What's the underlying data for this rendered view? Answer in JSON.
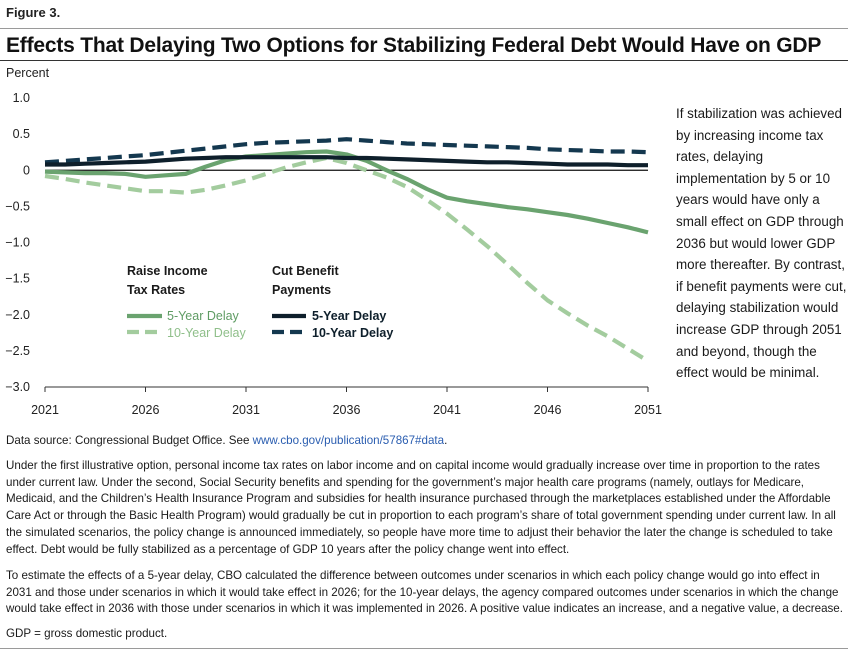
{
  "figure_label": "Figure 3.",
  "title": "Effects That Delaying Two Options for Stabilizing Federal Debt Would Have on GDP",
  "side_note": "If stabilization was achieved by increasing income tax rates, delaying implementation by 5 or 10 years would have only a small effect on GDP through 2036 but would lower GDP more thereafter. By contrast, if benefit payments were cut, delaying stabilization would increase GDP through 2051 and beyond, though the effect would be minimal.",
  "notes": {
    "source_prefix": "Data source: Congressional Budget Office. See ",
    "source_link": "www.cbo.gov/publication/57867#data",
    "source_suffix": ".",
    "paragraph1": "Under the first illustrative option, personal income tax rates on labor income and on capital income would gradually increase over time in proportion to the rates under current law. Under the second, Social Security benefits and spending for the government’s major health care programs (namely, outlays for Medicare, Medicaid, and the Children’s Health Insurance Program and subsidies for health insurance purchased through the marketplaces established under the Affordable Care Act or through the Basic Health Program) would gradually be cut in proportion to each program’s share of total government spending under current law. In all the simulated scenarios, the policy change is announced immediately, so people have more time to adjust their behavior the later the change is scheduled to take effect. Debt would be fully stabilized as a percentage of GDP 10 years after the policy change went into effect.",
    "paragraph2": "To estimate the effects of a 5-year delay, CBO calculated the difference between outcomes under scenarios in which each policy change would go into effect in 2031 and those under scenarios in which it would take effect in 2026; for the 10-year delays, the agency compared outcomes under scenarios in which the change would take effect in 2036 with those under scenarios in which it was implemented in 2026. A positive value indicates an increase, and a negative value, a decrease.",
    "abbreviation": "GDP = gross domestic product."
  },
  "chart_data": {
    "type": "line",
    "ylabel": "Percent",
    "xlabel": "",
    "xlim": [
      2021,
      2051
    ],
    "ylim": [
      -3.0,
      1.0
    ],
    "x_ticks": [
      "2021",
      "2026",
      "2031",
      "2036",
      "2041",
      "2046",
      "2051"
    ],
    "x_tick_values": [
      2021,
      2026,
      2031,
      2036,
      2041,
      2046,
      2051
    ],
    "y_ticks": [
      "1.0",
      "0.5",
      "0",
      "-0.5",
      "-1.0",
      "-1.5",
      "-2.0",
      "-2.5",
      "-3.0"
    ],
    "y_tick_values": [
      1.0,
      0.5,
      0,
      -0.5,
      -1.0,
      -1.5,
      -2.0,
      -2.5,
      -3.0
    ],
    "zero_line": true,
    "grid": false,
    "legend_groups": [
      {
        "title_line1": "Raise Income",
        "title_line2": "Tax Rates"
      },
      {
        "title_line1": "Cut Benefit",
        "title_line2": "Payments"
      }
    ],
    "x": [
      2021,
      2022,
      2023,
      2024,
      2025,
      2026,
      2027,
      2028,
      2029,
      2030,
      2031,
      2032,
      2033,
      2034,
      2035,
      2036,
      2037,
      2038,
      2039,
      2040,
      2041,
      2042,
      2043,
      2044,
      2045,
      2046,
      2047,
      2048,
      2049,
      2050,
      2051
    ],
    "series": [
      {
        "name": "5-Year Delay",
        "group": 0,
        "color": "#6aa36f",
        "dash": "solid",
        "values": [
          -0.02,
          -0.03,
          -0.04,
          -0.04,
          -0.05,
          -0.09,
          -0.07,
          -0.05,
          0.05,
          0.14,
          0.19,
          0.21,
          0.23,
          0.25,
          0.26,
          0.22,
          0.13,
          0.0,
          -0.12,
          -0.26,
          -0.38,
          -0.43,
          -0.47,
          -0.51,
          -0.54,
          -0.58,
          -0.62,
          -0.67,
          -0.73,
          -0.79,
          -0.86
        ]
      },
      {
        "name": "10-Year Delay",
        "group": 0,
        "color": "#a3cc9e",
        "dash": "dashed",
        "values": [
          -0.08,
          -0.12,
          -0.17,
          -0.21,
          -0.25,
          -0.29,
          -0.29,
          -0.31,
          -0.27,
          -0.21,
          -0.14,
          -0.05,
          0.04,
          0.11,
          0.17,
          0.1,
          0.0,
          -0.1,
          -0.23,
          -0.41,
          -0.6,
          -0.82,
          -1.05,
          -1.3,
          -1.56,
          -1.8,
          -1.98,
          -2.15,
          -2.3,
          -2.47,
          -2.64
        ]
      },
      {
        "name": "5-Year Delay",
        "group": 1,
        "color": "#0e1f2b",
        "dash": "solid",
        "values": [
          0.08,
          0.08,
          0.09,
          0.1,
          0.11,
          0.12,
          0.14,
          0.16,
          0.17,
          0.18,
          0.18,
          0.18,
          0.18,
          0.18,
          0.18,
          0.17,
          0.17,
          0.16,
          0.15,
          0.14,
          0.13,
          0.12,
          0.11,
          0.11,
          0.1,
          0.09,
          0.08,
          0.08,
          0.08,
          0.07,
          0.07
        ]
      },
      {
        "name": "10-Year Delay",
        "group": 1,
        "color": "#14384f",
        "dash": "dashed",
        "values": [
          0.11,
          0.13,
          0.15,
          0.17,
          0.19,
          0.21,
          0.24,
          0.27,
          0.3,
          0.33,
          0.36,
          0.38,
          0.39,
          0.4,
          0.41,
          0.43,
          0.41,
          0.39,
          0.37,
          0.36,
          0.35,
          0.34,
          0.33,
          0.32,
          0.31,
          0.29,
          0.28,
          0.27,
          0.26,
          0.26,
          0.25
        ]
      }
    ]
  }
}
